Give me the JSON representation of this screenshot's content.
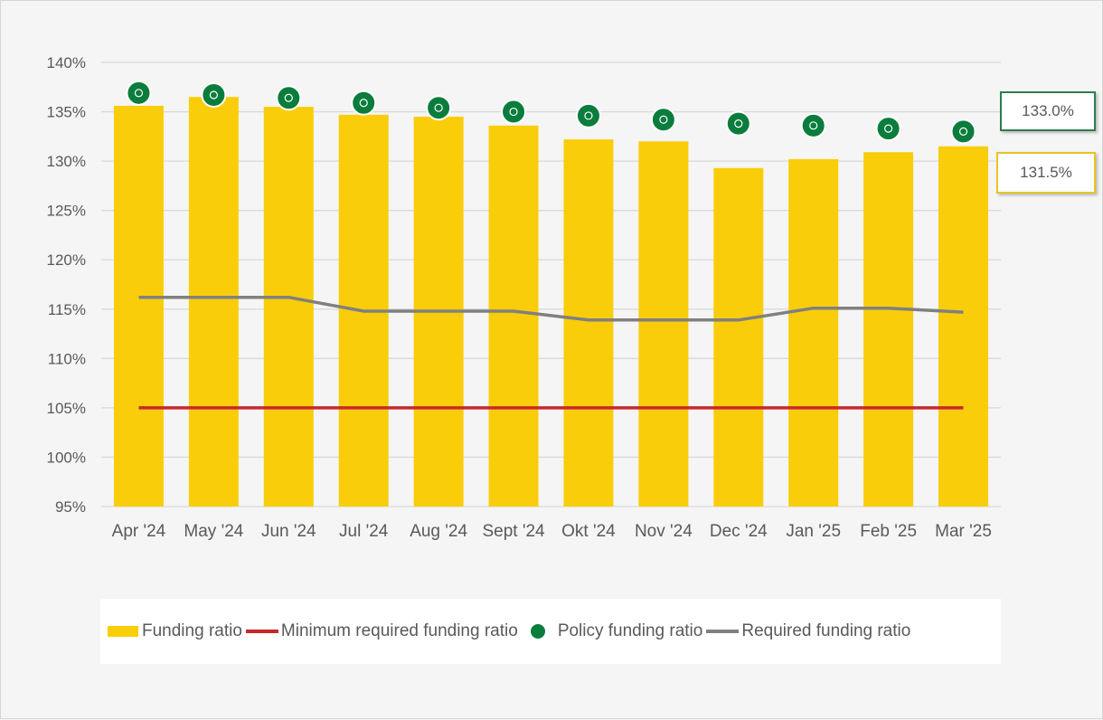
{
  "chart_data": {
    "type": "bar",
    "categories": [
      "Apr '24",
      "May '24",
      "Jun '24",
      "Jul '24",
      "Aug '24",
      "Sept '24",
      "Okt '24",
      "Nov '24",
      "Dec '24",
      "Jan '25",
      "Feb '25",
      "Mar '25"
    ],
    "series": [
      {
        "name": "Funding ratio",
        "type": "bar",
        "color": "#FACD0A",
        "values": [
          135.6,
          136.5,
          135.5,
          134.7,
          134.5,
          133.6,
          132.2,
          132.0,
          129.3,
          130.2,
          130.9,
          131.5
        ]
      },
      {
        "name": "Minimum required funding ratio",
        "type": "line",
        "color": "#C8282D",
        "values": [
          105.0,
          105.0,
          105.0,
          105.0,
          105.0,
          105.0,
          105.0,
          105.0,
          105.0,
          105.0,
          105.0,
          105.0
        ]
      },
      {
        "name": "Policy funding ratio",
        "type": "scatter",
        "color": "#0A7D3C",
        "values": [
          136.9,
          136.7,
          136.4,
          135.9,
          135.4,
          135.0,
          134.6,
          134.2,
          133.8,
          133.6,
          133.3,
          133.0
        ]
      },
      {
        "name": "Required funding ratio",
        "type": "line",
        "color": "#808080",
        "values": [
          116.2,
          116.2,
          116.2,
          114.8,
          114.8,
          114.8,
          113.9,
          113.9,
          113.9,
          115.1,
          115.1,
          114.7
        ]
      }
    ],
    "y_ticks": [
      "95%",
      "100%",
      "105%",
      "110%",
      "115%",
      "120%",
      "125%",
      "130%",
      "135%",
      "140%"
    ],
    "ylim": [
      95,
      140
    ],
    "grid": "horizontal",
    "legend_position": "bottom",
    "callouts": [
      {
        "series": "Policy funding ratio",
        "label": "133.0%",
        "border_color": "#2E7D4F"
      },
      {
        "series": "Funding ratio",
        "label": "131.5%",
        "border_color": "#E8C520"
      }
    ],
    "title": "",
    "xlabel": "",
    "ylabel": ""
  }
}
